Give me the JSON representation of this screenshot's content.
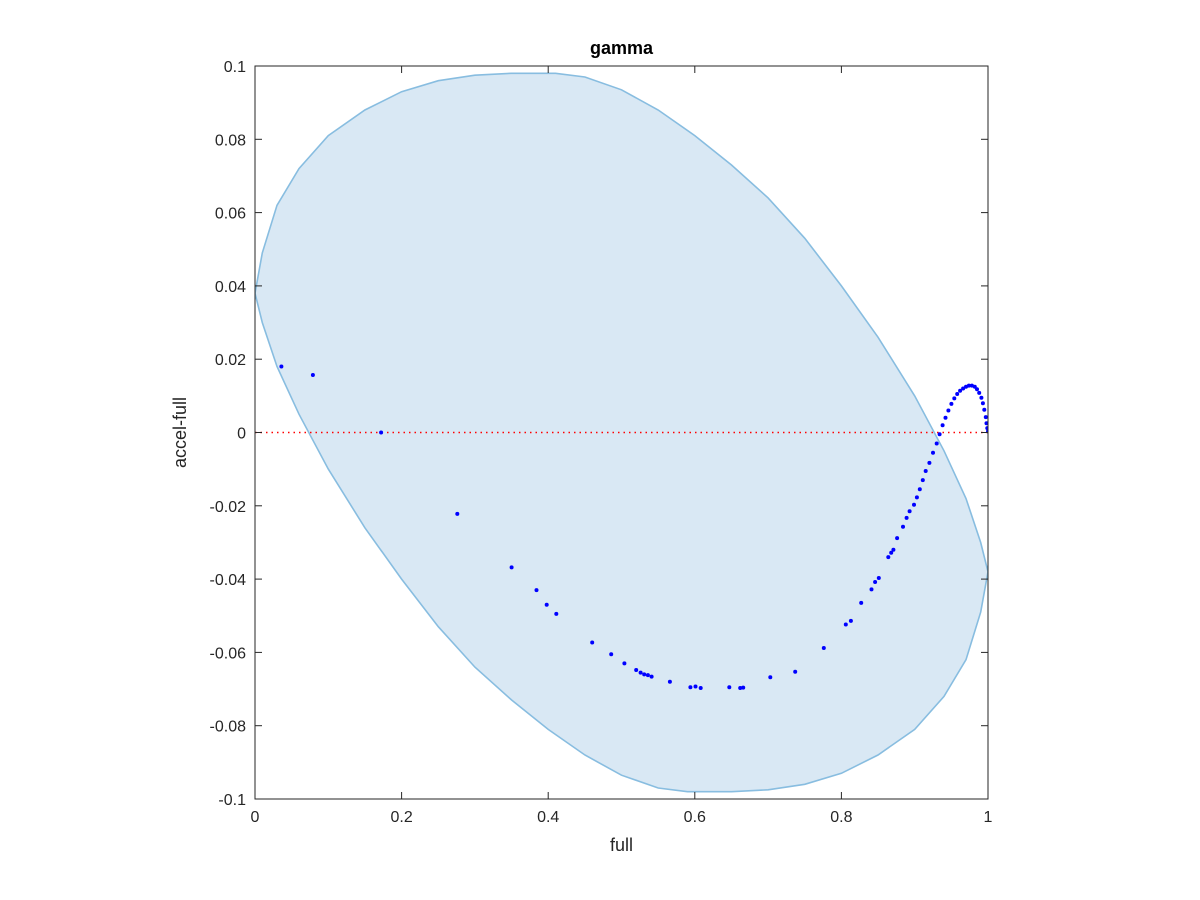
{
  "chart_data": {
    "type": "scatter",
    "title": "gamma",
    "xlabel": "full",
    "ylabel": "accel-full",
    "xlim": [
      0,
      1
    ],
    "ylim": [
      -0.1,
      0.1
    ],
    "grid": false,
    "x_ticks": [
      {
        "value": 0,
        "label": "0"
      },
      {
        "value": 0.2,
        "label": "0.2"
      },
      {
        "value": 0.4,
        "label": "0.4"
      },
      {
        "value": 0.6,
        "label": "0.6"
      },
      {
        "value": 0.8,
        "label": "0.8"
      },
      {
        "value": 1,
        "label": "1"
      }
    ],
    "y_ticks": [
      {
        "value": 0.1,
        "label": "0.1"
      },
      {
        "value": 0.08,
        "label": "0.08"
      },
      {
        "value": 0.06,
        "label": "0.06"
      },
      {
        "value": 0.04,
        "label": "0.04"
      },
      {
        "value": 0.02,
        "label": "0.02"
      },
      {
        "value": 0,
        "label": "0"
      },
      {
        "value": -0.02,
        "label": "-0.02"
      },
      {
        "value": -0.04,
        "label": "-0.04"
      },
      {
        "value": -0.06,
        "label": "-0.06"
      },
      {
        "value": -0.08,
        "label": "-0.08"
      },
      {
        "value": -0.1,
        "label": "-0.1"
      }
    ],
    "reference_line": {
      "y": 0,
      "color": "#ff0000",
      "style": "dotted"
    },
    "region": {
      "fill": "#d9e8f4",
      "stroke": "#88bde0",
      "boundary": [
        [
          0,
          0.038
        ],
        [
          0.01,
          0.049
        ],
        [
          0.03,
          0.062
        ],
        [
          0.06,
          0.072
        ],
        [
          0.1,
          0.081
        ],
        [
          0.15,
          0.088
        ],
        [
          0.2,
          0.093
        ],
        [
          0.25,
          0.096
        ],
        [
          0.3,
          0.0975
        ],
        [
          0.35,
          0.098
        ],
        [
          0.41,
          0.098
        ],
        [
          0.45,
          0.097
        ],
        [
          0.5,
          0.0935
        ],
        [
          0.55,
          0.088
        ],
        [
          0.6,
          0.081
        ],
        [
          0.65,
          0.073
        ],
        [
          0.7,
          0.064
        ],
        [
          0.75,
          0.053
        ],
        [
          0.8,
          0.04
        ],
        [
          0.85,
          0.026
        ],
        [
          0.9,
          0.01
        ],
        [
          0.94,
          -0.005
        ],
        [
          0.97,
          -0.018
        ],
        [
          0.99,
          -0.03
        ],
        [
          1,
          -0.038
        ],
        [
          0.99,
          -0.049
        ],
        [
          0.97,
          -0.062
        ],
        [
          0.94,
          -0.072
        ],
        [
          0.9,
          -0.081
        ],
        [
          0.85,
          -0.088
        ],
        [
          0.8,
          -0.093
        ],
        [
          0.75,
          -0.096
        ],
        [
          0.7,
          -0.0975
        ],
        [
          0.65,
          -0.098
        ],
        [
          0.59,
          -0.098
        ],
        [
          0.55,
          -0.097
        ],
        [
          0.5,
          -0.0935
        ],
        [
          0.45,
          -0.088
        ],
        [
          0.4,
          -0.081
        ],
        [
          0.35,
          -0.073
        ],
        [
          0.3,
          -0.064
        ],
        [
          0.25,
          -0.053
        ],
        [
          0.2,
          -0.04
        ],
        [
          0.15,
          -0.026
        ],
        [
          0.1,
          -0.01
        ],
        [
          0.06,
          0.005
        ],
        [
          0.03,
          0.018
        ],
        [
          0.01,
          0.03
        ]
      ]
    },
    "series": [
      {
        "color": "#0000ff",
        "points": [
          [
            0.036,
            0.018
          ],
          [
            0.079,
            0.0157
          ],
          [
            0.172,
            0.0
          ],
          [
            0.276,
            -0.0222
          ],
          [
            0.35,
            -0.0368
          ],
          [
            0.384,
            -0.043
          ],
          [
            0.398,
            -0.047
          ],
          [
            0.411,
            -0.0495
          ],
          [
            0.46,
            -0.0573
          ],
          [
            0.486,
            -0.0605
          ],
          [
            0.504,
            -0.063
          ],
          [
            0.52,
            -0.0648
          ],
          [
            0.526,
            -0.0655
          ],
          [
            0.531,
            -0.066
          ],
          [
            0.536,
            -0.0662
          ],
          [
            0.541,
            -0.0666
          ],
          [
            0.566,
            -0.068
          ],
          [
            0.594,
            -0.0695
          ],
          [
            0.601,
            -0.0693
          ],
          [
            0.608,
            -0.0697
          ],
          [
            0.647,
            -0.0695
          ],
          [
            0.662,
            -0.0697
          ],
          [
            0.666,
            -0.0696
          ],
          [
            0.703,
            -0.0668
          ],
          [
            0.737,
            -0.0653
          ],
          [
            0.776,
            -0.0588
          ],
          [
            0.806,
            -0.0524
          ],
          [
            0.813,
            -0.0514
          ],
          [
            0.827,
            -0.0465
          ],
          [
            0.841,
            -0.0428
          ],
          [
            0.846,
            -0.0408
          ],
          [
            0.851,
            -0.0397
          ],
          [
            0.864,
            -0.034
          ],
          [
            0.868,
            -0.0328
          ],
          [
            0.871,
            -0.032
          ],
          [
            0.876,
            -0.0288
          ],
          [
            0.884,
            -0.0257
          ],
          [
            0.889,
            -0.0233
          ],
          [
            0.893,
            -0.0215
          ],
          [
            0.899,
            -0.0197
          ],
          [
            0.903,
            -0.0177
          ],
          [
            0.907,
            -0.0155
          ],
          [
            0.911,
            -0.013
          ],
          [
            0.915,
            -0.0105
          ],
          [
            0.92,
            -0.0083
          ],
          [
            0.925,
            -0.0055
          ],
          [
            0.93,
            -0.003
          ],
          [
            0.934,
            -0.0005
          ],
          [
            0.938,
            0.002
          ],
          [
            0.942,
            0.004
          ],
          [
            0.946,
            0.006
          ],
          [
            0.95,
            0.0078
          ],
          [
            0.954,
            0.0093
          ],
          [
            0.958,
            0.0105
          ],
          [
            0.962,
            0.0114
          ],
          [
            0.966,
            0.012
          ],
          [
            0.97,
            0.0125
          ],
          [
            0.974,
            0.0128
          ],
          [
            0.978,
            0.0128
          ],
          [
            0.982,
            0.0125
          ],
          [
            0.985,
            0.0118
          ],
          [
            0.988,
            0.0108
          ],
          [
            0.991,
            0.0095
          ],
          [
            0.993,
            0.008
          ],
          [
            0.995,
            0.0062
          ],
          [
            0.997,
            0.0042
          ],
          [
            0.998,
            0.0025
          ],
          [
            0.999,
            0.0012
          ],
          [
            1.0,
            0.0003
          ]
        ]
      }
    ]
  }
}
